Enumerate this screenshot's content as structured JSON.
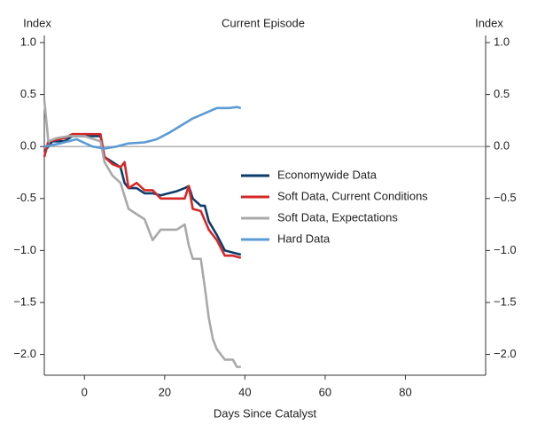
{
  "chart_data": {
    "type": "line",
    "title": "Current Episode",
    "y_label": "Index",
    "y2_label": "Index",
    "x_label": "Days Since Catalyst",
    "xlim": [
      -10,
      100
    ],
    "xticks": [
      0,
      20,
      40,
      60,
      80
    ],
    "ylim": [
      -2.2,
      1.0
    ],
    "yticks": [
      {
        "value": 1.0,
        "label": "1.0"
      },
      0.5,
      {
        "value": 0,
        "label": "0.0"
      },
      -0.5,
      {
        "value": -1.0,
        "label": "−1.0"
      },
      {
        "value": -1.5,
        "label": "−1.5"
      },
      {
        "value": -2.0,
        "label": "−2.0"
      }
    ],
    "y2lim": [
      -2.2,
      1.0
    ],
    "y2ticks": [
      {
        "value": 1.0,
        "label": "1.0"
      },
      0.5,
      {
        "value": 0,
        "label": "0.0"
      },
      {
        "value": -0.5,
        "label": "−0.5"
      },
      {
        "value": -1.0,
        "label": "−1.0"
      },
      {
        "value": -1.5,
        "label": "−1.5"
      },
      {
        "value": -2.0,
        "label": "−2.0"
      }
    ],
    "hline": 0,
    "series": [
      {
        "name": "Economywide Data",
        "color": "#0b3d6b",
        "x": [
          -10,
          -8,
          -5,
          -3,
          0,
          4,
          5,
          7,
          9,
          10,
          11,
          13,
          15,
          17,
          19,
          21,
          23,
          25,
          26,
          27,
          29,
          30,
          31,
          33,
          35,
          37,
          39
        ],
        "values": [
          -0.05,
          0.05,
          0.05,
          0.1,
          0.1,
          0.1,
          -0.1,
          -0.15,
          -0.2,
          -0.35,
          -0.4,
          -0.4,
          -0.45,
          -0.45,
          -0.47,
          -0.45,
          -0.43,
          -0.4,
          -0.38,
          -0.5,
          -0.57,
          -0.57,
          -0.72,
          -0.85,
          -1.0,
          -1.02,
          -1.04
        ]
      },
      {
        "name": "Soft Data, Current Conditions",
        "color": "#d62728",
        "x": [
          -10,
          -9,
          -5,
          -3,
          0,
          4,
          5,
          7,
          9,
          10,
          11,
          13,
          15,
          17,
          19,
          21,
          23,
          25,
          26,
          27,
          29,
          31,
          33,
          35,
          37,
          39
        ],
        "values": [
          -0.1,
          0.05,
          0.08,
          0.12,
          0.12,
          0.12,
          -0.1,
          -0.17,
          -0.2,
          -0.15,
          -0.4,
          -0.35,
          -0.42,
          -0.42,
          -0.5,
          -0.5,
          -0.5,
          -0.5,
          -0.38,
          -0.6,
          -0.62,
          -0.8,
          -0.9,
          -1.05,
          -1.05,
          -1.07
        ]
      },
      {
        "name": "Soft Data, Expectations",
        "color": "#a9a9a9",
        "x": [
          -10,
          -9,
          -7,
          -4,
          0,
          4,
          5,
          7,
          9,
          11,
          13,
          15,
          17,
          19,
          21,
          23,
          25,
          26,
          27,
          29,
          30,
          31,
          32,
          33,
          35,
          37,
          38,
          39
        ],
        "values": [
          0.45,
          0.05,
          0.08,
          0.1,
          0.1,
          0.05,
          -0.15,
          -0.28,
          -0.35,
          -0.6,
          -0.65,
          -0.7,
          -0.9,
          -0.8,
          -0.8,
          -0.8,
          -0.75,
          -0.95,
          -1.08,
          -1.08,
          -1.35,
          -1.65,
          -1.85,
          -1.95,
          -2.05,
          -2.05,
          -2.12,
          -2.12
        ]
      },
      {
        "name": "Hard Data",
        "color": "#5b9bd5",
        "x": [
          -10,
          -6,
          -2,
          2,
          5,
          8,
          11,
          15,
          18,
          21,
          24,
          27,
          30,
          33,
          36,
          38,
          39
        ],
        "values": [
          0,
          0.03,
          0.07,
          0.0,
          -0.02,
          0.0,
          0.03,
          0.04,
          0.07,
          0.13,
          0.2,
          0.27,
          0.32,
          0.37,
          0.37,
          0.38,
          0.37
        ]
      }
    ]
  }
}
